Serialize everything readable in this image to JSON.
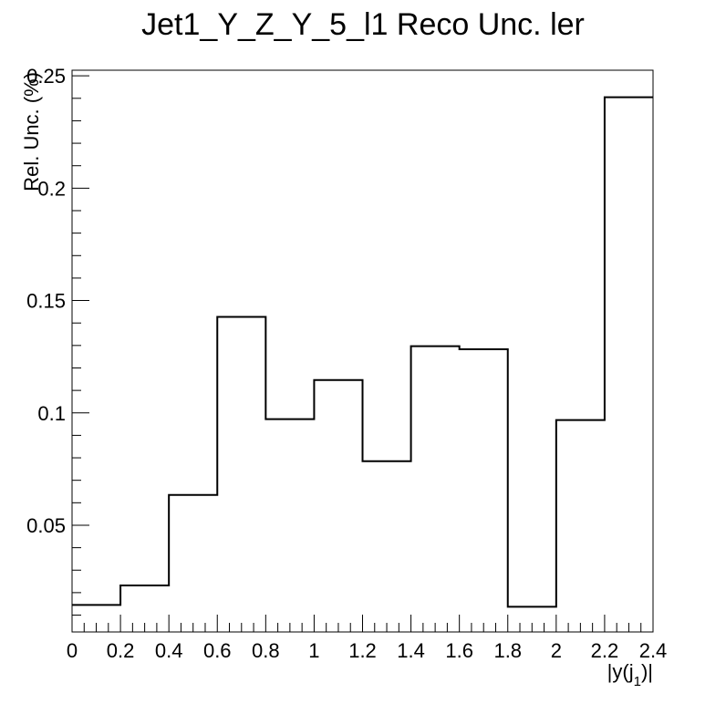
{
  "chart_data": {
    "type": "histogram",
    "title": "Jet1_Y_Z_Y_5_l1 Reco Unc. ler",
    "xlabel": "|y(j_1)|",
    "ylabel": "Rel. Unc. (%)",
    "xlim": [
      0,
      2.4
    ],
    "ylim": [
      0.0025,
      0.2525
    ],
    "grid": false,
    "bin_edges": [
      0,
      0.2,
      0.4,
      0.6,
      0.8,
      1.0,
      1.2,
      1.4,
      1.6,
      1.8,
      2.0,
      2.2,
      2.4
    ],
    "values": [
      0.0145,
      0.0232,
      0.0635,
      0.1427,
      0.0972,
      0.1146,
      0.0785,
      0.1297,
      0.1283,
      0.0137,
      0.0968,
      0.2405
    ],
    "x_ticks": [
      "0",
      "0.2",
      "0.4",
      "0.6",
      "0.8",
      "1",
      "1.2",
      "1.4",
      "1.6",
      "1.8",
      "2",
      "2.2",
      "2.4"
    ],
    "x_tick_values": [
      0,
      0.2,
      0.4,
      0.6,
      0.8,
      1.0,
      1.2,
      1.4,
      1.6,
      1.8,
      2.0,
      2.2,
      2.4
    ],
    "y_ticks": [
      "0.05",
      "0.1",
      "0.15",
      "0.2",
      "0.25"
    ],
    "y_tick_values": [
      0.05,
      0.1,
      0.15,
      0.2,
      0.25
    ]
  }
}
